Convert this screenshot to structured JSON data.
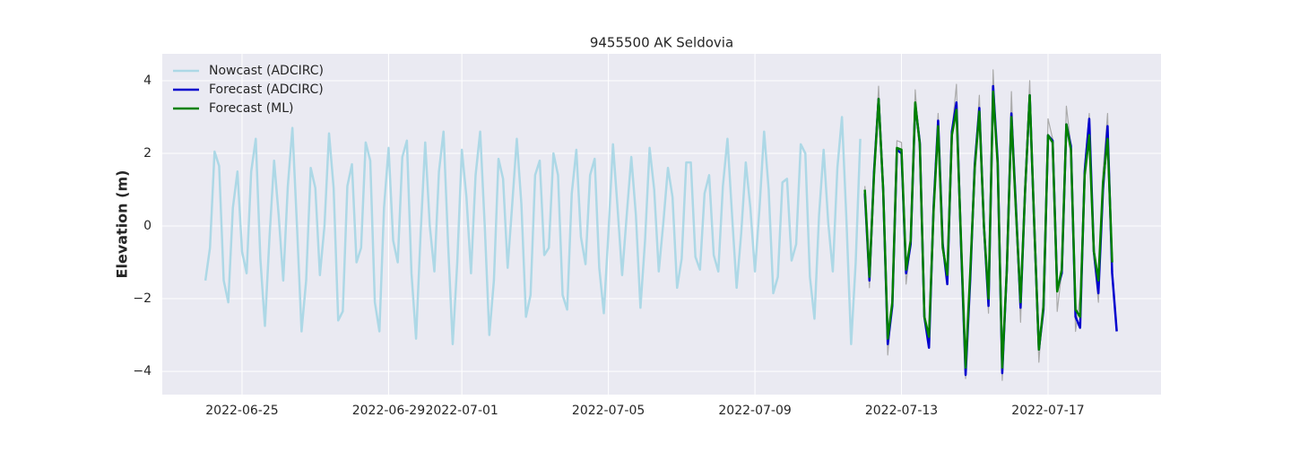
{
  "chart_data": {
    "type": "line",
    "title": "9455500 AK Seldovia",
    "y_label": "Elevation (m)",
    "xlim": [
      "2022-06-22 19:45",
      "2022-07-20 02:00"
    ],
    "xticks": [
      "2022-06-25",
      "2022-06-29",
      "2022-07-01",
      "2022-07-05",
      "2022-07-09",
      "2022-07-13",
      "2022-07-17"
    ],
    "ylim": [
      -4.64,
      4.74
    ],
    "yticks": [
      {
        "value": -4,
        "label": "−4"
      },
      {
        "value": -2,
        "label": "−2"
      },
      0,
      2,
      4
    ],
    "grid": true,
    "legend": "upper-left",
    "series": [
      {
        "name": "Nowcast (ADCIRC)",
        "color": "#add8e6",
        "width": 2.5,
        "x": [
          "2022-06-24 00:00",
          "2022-06-24 03:00",
          "2022-06-24 06:00",
          "2022-06-24 09:00",
          "2022-06-24 12:00",
          "2022-06-24 15:00",
          "2022-06-24 18:00",
          "2022-06-24 21:00",
          "2022-06-25 00:00",
          "2022-06-25 03:00",
          "2022-06-25 06:00",
          "2022-06-25 09:00",
          "2022-06-25 12:00",
          "2022-06-25 15:00",
          "2022-06-25 18:00",
          "2022-06-25 21:00",
          "2022-06-26 00:00",
          "2022-06-26 03:00",
          "2022-06-26 06:00",
          "2022-06-26 09:00",
          "2022-06-26 12:00",
          "2022-06-26 15:00",
          "2022-06-26 18:00",
          "2022-06-26 21:00",
          "2022-06-27 00:00",
          "2022-06-27 03:00",
          "2022-06-27 06:00",
          "2022-06-27 09:00",
          "2022-06-27 12:00",
          "2022-06-27 15:00",
          "2022-06-27 18:00",
          "2022-06-27 21:00",
          "2022-06-28 00:00",
          "2022-06-28 03:00",
          "2022-06-28 06:00",
          "2022-06-28 09:00",
          "2022-06-28 12:00",
          "2022-06-28 15:00",
          "2022-06-28 18:00",
          "2022-06-28 21:00",
          "2022-06-29 00:00",
          "2022-06-29 03:00",
          "2022-06-29 06:00",
          "2022-06-29 09:00",
          "2022-06-29 12:00",
          "2022-06-29 15:00",
          "2022-06-29 18:00",
          "2022-06-29 21:00",
          "2022-06-30 00:00",
          "2022-06-30 03:00",
          "2022-06-30 06:00",
          "2022-06-30 09:00",
          "2022-06-30 12:00",
          "2022-06-30 15:00",
          "2022-06-30 18:00",
          "2022-06-30 21:00",
          "2022-07-01 00:00",
          "2022-07-01 03:00",
          "2022-07-01 06:00",
          "2022-07-01 09:00",
          "2022-07-01 12:00",
          "2022-07-01 15:00",
          "2022-07-01 18:00",
          "2022-07-01 21:00",
          "2022-07-02 00:00",
          "2022-07-02 03:00",
          "2022-07-02 06:00",
          "2022-07-02 09:00",
          "2022-07-02 12:00",
          "2022-07-02 15:00",
          "2022-07-02 18:00",
          "2022-07-02 21:00",
          "2022-07-03 00:00",
          "2022-07-03 03:00",
          "2022-07-03 06:00",
          "2022-07-03 09:00",
          "2022-07-03 12:00",
          "2022-07-03 15:00",
          "2022-07-03 18:00",
          "2022-07-03 21:00",
          "2022-07-04 00:00",
          "2022-07-04 03:00",
          "2022-07-04 06:00",
          "2022-07-04 09:00",
          "2022-07-04 12:00",
          "2022-07-04 15:00",
          "2022-07-04 18:00",
          "2022-07-04 21:00",
          "2022-07-05 00:00",
          "2022-07-05 03:00",
          "2022-07-05 06:00",
          "2022-07-05 09:00",
          "2022-07-05 12:00",
          "2022-07-05 15:00",
          "2022-07-05 18:00",
          "2022-07-05 21:00",
          "2022-07-06 00:00",
          "2022-07-06 03:00",
          "2022-07-06 06:00",
          "2022-07-06 09:00",
          "2022-07-06 12:00",
          "2022-07-06 15:00",
          "2022-07-06 18:00",
          "2022-07-06 21:00",
          "2022-07-07 00:00",
          "2022-07-07 03:00",
          "2022-07-07 06:00",
          "2022-07-07 09:00",
          "2022-07-07 12:00",
          "2022-07-07 15:00",
          "2022-07-07 18:00",
          "2022-07-07 21:00",
          "2022-07-08 00:00",
          "2022-07-08 03:00",
          "2022-07-08 06:00",
          "2022-07-08 09:00",
          "2022-07-08 12:00",
          "2022-07-08 15:00",
          "2022-07-08 18:00",
          "2022-07-08 21:00",
          "2022-07-09 00:00",
          "2022-07-09 03:00",
          "2022-07-09 06:00",
          "2022-07-09 09:00",
          "2022-07-09 12:00",
          "2022-07-09 15:00",
          "2022-07-09 18:00",
          "2022-07-09 21:00",
          "2022-07-10 00:00",
          "2022-07-10 03:00",
          "2022-07-10 06:00",
          "2022-07-10 09:00",
          "2022-07-10 12:00",
          "2022-07-10 15:00",
          "2022-07-10 18:00",
          "2022-07-10 21:00",
          "2022-07-11 00:00",
          "2022-07-11 03:00",
          "2022-07-11 06:00",
          "2022-07-11 09:00",
          "2022-07-11 12:00",
          "2022-07-11 15:00",
          "2022-07-11 18:00",
          "2022-07-11 21:00"
        ],
        "values": [
          -1.5,
          -0.6,
          2.05,
          1.65,
          -1.5,
          -2.1,
          0.5,
          1.5,
          -0.7,
          -1.3,
          1.5,
          2.4,
          -0.9,
          -2.75,
          -0.3,
          1.8,
          0.3,
          -1.5,
          1.1,
          2.7,
          0.0,
          -2.9,
          -1.5,
          1.6,
          1.05,
          -1.35,
          0.0,
          2.55,
          1.05,
          -2.6,
          -2.35,
          1.1,
          1.7,
          -1.0,
          -0.6,
          2.3,
          1.8,
          -2.1,
          -2.9,
          0.5,
          2.15,
          -0.4,
          -1.0,
          1.9,
          2.35,
          -1.3,
          -3.1,
          -0.2,
          2.3,
          0.0,
          -1.25,
          1.5,
          2.6,
          -0.5,
          -3.25,
          -1.0,
          2.1,
          0.8,
          -1.3,
          1.4,
          2.6,
          0.0,
          -3.0,
          -1.5,
          1.85,
          1.3,
          -1.15,
          0.6,
          2.4,
          0.6,
          -2.5,
          -1.9,
          1.4,
          1.8,
          -0.8,
          -0.6,
          2.0,
          1.4,
          -1.9,
          -2.3,
          0.9,
          2.1,
          -0.3,
          -1.05,
          1.4,
          1.85,
          -1.15,
          -2.4,
          -0.2,
          2.25,
          0.5,
          -1.35,
          0.3,
          1.9,
          0.3,
          -2.25,
          -0.4,
          2.15,
          1.0,
          -1.25,
          0.1,
          1.6,
          0.8,
          -1.7,
          -0.9,
          1.75,
          1.75,
          -0.85,
          -1.2,
          0.9,
          1.4,
          -0.8,
          -1.25,
          1.1,
          2.4,
          0.3,
          -1.7,
          -0.2,
          1.75,
          0.5,
          -1.25,
          0.5,
          2.6,
          1.0,
          -1.85,
          -1.4,
          1.2,
          1.3,
          -0.95,
          -0.5,
          2.25,
          2.0,
          -1.4,
          -2.55,
          0.3,
          2.1,
          0.1,
          -1.25,
          1.6,
          3.0,
          0.1,
          -3.25,
          -1.0,
          2.4
        ]
      },
      {
        "color": "#aaaaaa",
        "width": 1.2,
        "x": [
          "2022-07-12 00:00",
          "2022-07-12 03:00",
          "2022-07-12 06:00",
          "2022-07-12 09:00",
          "2022-07-12 12:00",
          "2022-07-12 15:00",
          "2022-07-12 18:00",
          "2022-07-12 21:00",
          "2022-07-13 00:00",
          "2022-07-13 03:00",
          "2022-07-13 06:00",
          "2022-07-13 09:00",
          "2022-07-13 12:00",
          "2022-07-13 15:00",
          "2022-07-13 18:00",
          "2022-07-13 21:00",
          "2022-07-14 00:00",
          "2022-07-14 03:00",
          "2022-07-14 06:00",
          "2022-07-14 09:00",
          "2022-07-14 12:00",
          "2022-07-14 15:00",
          "2022-07-14 18:00",
          "2022-07-14 21:00",
          "2022-07-15 00:00",
          "2022-07-15 03:00",
          "2022-07-15 06:00",
          "2022-07-15 09:00",
          "2022-07-15 12:00",
          "2022-07-15 15:00",
          "2022-07-15 18:00",
          "2022-07-15 21:00",
          "2022-07-16 00:00",
          "2022-07-16 03:00",
          "2022-07-16 06:00",
          "2022-07-16 09:00",
          "2022-07-16 12:00",
          "2022-07-16 15:00",
          "2022-07-16 18:00",
          "2022-07-16 21:00",
          "2022-07-17 00:00",
          "2022-07-17 03:00",
          "2022-07-17 06:00",
          "2022-07-17 09:00",
          "2022-07-17 12:00",
          "2022-07-17 15:00",
          "2022-07-17 18:00",
          "2022-07-17 21:00",
          "2022-07-18 00:00",
          "2022-07-18 03:00",
          "2022-07-18 06:00",
          "2022-07-18 09:00",
          "2022-07-18 12:00",
          "2022-07-18 15:00",
          "2022-07-18 18:00"
        ],
        "values": [
          1.1,
          -1.7,
          1.5,
          3.85,
          0.9,
          -3.55,
          -2.0,
          2.35,
          2.3,
          -1.6,
          -0.5,
          3.75,
          2.0,
          -2.6,
          -3.2,
          0.7,
          3.1,
          -0.5,
          -1.6,
          2.6,
          3.9,
          -0.8,
          -4.2,
          -1.5,
          1.8,
          3.6,
          -0.1,
          -2.4,
          4.3,
          1.6,
          -4.25,
          -1.3,
          3.7,
          0.3,
          -2.65,
          1.2,
          4.0,
          -0.3,
          -3.75,
          -2.0,
          2.95,
          2.4,
          -2.35,
          -1.25,
          3.3,
          2.2,
          -2.9,
          -1.9,
          1.7,
          3.1,
          -0.85,
          -2.1,
          1.5,
          3.1,
          -1.3
        ]
      },
      {
        "name": "Forecast (ADCIRC)",
        "color": "#0000cd",
        "width": 2.5,
        "x": [
          "2022-07-12 00:00",
          "2022-07-12 03:00",
          "2022-07-12 06:00",
          "2022-07-12 09:00",
          "2022-07-12 12:00",
          "2022-07-12 15:00",
          "2022-07-12 18:00",
          "2022-07-12 21:00",
          "2022-07-13 00:00",
          "2022-07-13 03:00",
          "2022-07-13 06:00",
          "2022-07-13 09:00",
          "2022-07-13 12:00",
          "2022-07-13 15:00",
          "2022-07-13 18:00",
          "2022-07-13 21:00",
          "2022-07-14 00:00",
          "2022-07-14 03:00",
          "2022-07-14 06:00",
          "2022-07-14 09:00",
          "2022-07-14 12:00",
          "2022-07-14 15:00",
          "2022-07-14 18:00",
          "2022-07-14 21:00",
          "2022-07-15 00:00",
          "2022-07-15 03:00",
          "2022-07-15 06:00",
          "2022-07-15 09:00",
          "2022-07-15 12:00",
          "2022-07-15 15:00",
          "2022-07-15 18:00",
          "2022-07-15 21:00",
          "2022-07-16 00:00",
          "2022-07-16 03:00",
          "2022-07-16 06:00",
          "2022-07-16 09:00",
          "2022-07-16 12:00",
          "2022-07-16 15:00",
          "2022-07-16 18:00",
          "2022-07-16 21:00",
          "2022-07-17 00:00",
          "2022-07-17 03:00",
          "2022-07-17 06:00",
          "2022-07-17 09:00",
          "2022-07-17 12:00",
          "2022-07-17 15:00",
          "2022-07-17 18:00",
          "2022-07-17 21:00",
          "2022-07-18 00:00",
          "2022-07-18 03:00",
          "2022-07-18 06:00",
          "2022-07-18 09:00",
          "2022-07-18 12:00",
          "2022-07-18 15:00",
          "2022-07-18 18:00",
          "2022-07-18 21:00"
        ],
        "values": [
          0.9,
          -1.5,
          1.5,
          3.5,
          1.0,
          -3.25,
          -2.2,
          2.1,
          2.0,
          -1.3,
          -0.5,
          3.35,
          2.3,
          -2.5,
          -3.35,
          0.5,
          2.9,
          -0.5,
          -1.6,
          2.6,
          3.4,
          -0.5,
          -4.1,
          -1.5,
          1.7,
          3.25,
          0.0,
          -2.2,
          3.85,
          1.8,
          -4.05,
          -1.2,
          3.1,
          0.5,
          -2.25,
          1.0,
          3.6,
          0.0,
          -3.4,
          -2.3,
          2.5,
          2.35,
          -1.75,
          -1.3,
          2.8,
          2.2,
          -2.5,
          -2.8,
          1.5,
          2.95,
          -0.7,
          -1.85,
          1.0,
          2.75,
          -1.3,
          -2.9
        ]
      },
      {
        "name": "Forecast (ML)",
        "color": "#008000",
        "width": 2.5,
        "x": [
          "2022-07-12 00:00",
          "2022-07-12 03:00",
          "2022-07-12 06:00",
          "2022-07-12 09:00",
          "2022-07-12 12:00",
          "2022-07-12 15:00",
          "2022-07-12 18:00",
          "2022-07-12 21:00",
          "2022-07-13 00:00",
          "2022-07-13 03:00",
          "2022-07-13 06:00",
          "2022-07-13 09:00",
          "2022-07-13 12:00",
          "2022-07-13 15:00",
          "2022-07-13 18:00",
          "2022-07-13 21:00",
          "2022-07-14 00:00",
          "2022-07-14 03:00",
          "2022-07-14 06:00",
          "2022-07-14 09:00",
          "2022-07-14 12:00",
          "2022-07-14 15:00",
          "2022-07-14 18:00",
          "2022-07-14 21:00",
          "2022-07-15 00:00",
          "2022-07-15 03:00",
          "2022-07-15 06:00",
          "2022-07-15 09:00",
          "2022-07-15 12:00",
          "2022-07-15 15:00",
          "2022-07-15 18:00",
          "2022-07-15 21:00",
          "2022-07-16 00:00",
          "2022-07-16 03:00",
          "2022-07-16 06:00",
          "2022-07-16 09:00",
          "2022-07-16 12:00",
          "2022-07-16 15:00",
          "2022-07-16 18:00",
          "2022-07-16 21:00",
          "2022-07-17 00:00",
          "2022-07-17 03:00",
          "2022-07-17 06:00",
          "2022-07-17 09:00",
          "2022-07-17 12:00",
          "2022-07-17 15:00",
          "2022-07-17 18:00",
          "2022-07-17 21:00",
          "2022-07-18 00:00",
          "2022-07-18 03:00",
          "2022-07-18 06:00",
          "2022-07-18 09:00",
          "2022-07-18 12:00",
          "2022-07-18 15:00",
          "2022-07-18 18:00"
        ],
        "values": [
          1.0,
          -1.4,
          1.4,
          3.5,
          1.0,
          -3.1,
          -2.1,
          2.15,
          2.1,
          -1.2,
          -0.4,
          3.4,
          2.25,
          -2.5,
          -3.05,
          0.4,
          2.75,
          -0.6,
          -1.35,
          2.5,
          3.2,
          -0.4,
          -3.9,
          -1.3,
          1.6,
          3.15,
          0.0,
          -2.0,
          3.7,
          1.7,
          -3.9,
          -1.2,
          3.0,
          0.4,
          -2.1,
          1.0,
          3.6,
          0.0,
          -3.4,
          -2.2,
          2.5,
          2.3,
          -1.8,
          -1.2,
          2.8,
          2.1,
          -2.3,
          -2.5,
          1.4,
          2.5,
          -0.7,
          -1.5,
          1.2,
          2.4,
          -1.0
        ]
      }
    ]
  }
}
